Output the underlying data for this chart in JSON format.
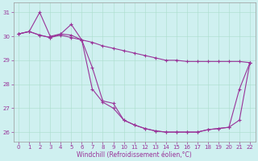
{
  "xlabel": "Windchill (Refroidissement éolien,°C)",
  "bg_color": "#cff0f0",
  "line_color": "#993399",
  "marker": "+",
  "markersize": 3,
  "linewidth": 0.8,
  "grid_color": "#aaddcc",
  "x_data": [
    0,
    1,
    2,
    3,
    4,
    5,
    6,
    7,
    8,
    9,
    10,
    11,
    12,
    13,
    14,
    15,
    16,
    17,
    18,
    19,
    20,
    21,
    22
  ],
  "series": [
    [
      30.1,
      30.2,
      31.0,
      30.0,
      30.1,
      30.5,
      29.85,
      29.75,
      29.6,
      29.5,
      29.4,
      29.3,
      29.2,
      29.1,
      29.0,
      29.0,
      28.95,
      28.95,
      28.95,
      28.95,
      28.95,
      28.95,
      28.9
    ],
    [
      30.1,
      30.2,
      30.05,
      29.95,
      30.1,
      30.05,
      29.85,
      28.7,
      27.3,
      27.2,
      26.5,
      26.3,
      26.15,
      26.05,
      26.0,
      26.0,
      26.0,
      26.0,
      26.1,
      26.15,
      26.2,
      27.8,
      28.9
    ],
    [
      30.1,
      30.2,
      30.05,
      29.95,
      30.05,
      29.95,
      29.85,
      27.8,
      27.25,
      27.0,
      26.5,
      26.3,
      26.15,
      26.05,
      26.0,
      26.0,
      26.0,
      26.0,
      26.1,
      26.15,
      26.2,
      26.5,
      28.9
    ]
  ],
  "ylim": [
    25.6,
    31.4
  ],
  "yticks": [
    26,
    27,
    28,
    29,
    30,
    31
  ],
  "xlim": [
    -0.5,
    22.5
  ],
  "xticks": [
    0,
    1,
    2,
    3,
    4,
    5,
    6,
    7,
    8,
    9,
    10,
    11,
    12,
    13,
    14,
    15,
    16,
    17,
    18,
    19,
    20,
    21,
    22
  ],
  "tick_labelsize": 5,
  "xlabel_fontsize": 5.5,
  "figsize": [
    3.2,
    2.0
  ],
  "dpi": 100
}
